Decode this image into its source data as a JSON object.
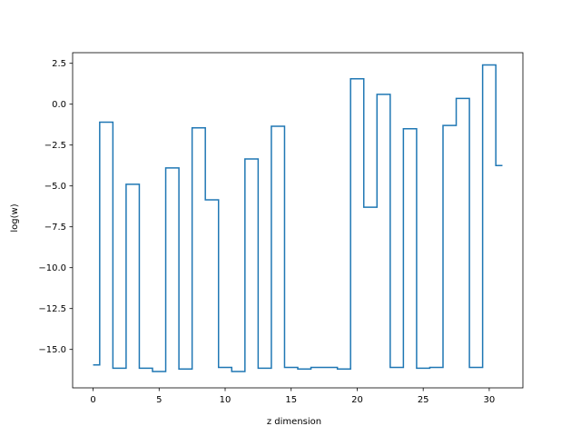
{
  "chart_data": {
    "type": "line",
    "drawstyle": "steps-mid",
    "title": "",
    "xlabel": "z dimension",
    "ylabel": "log(w)",
    "xlim": [
      -1.55,
      32.55
    ],
    "ylim": [
      -17.35,
      3.15
    ],
    "xticks": [
      0,
      5,
      10,
      15,
      20,
      25,
      30
    ],
    "yticks": [
      2.5,
      0.0,
      -2.5,
      -5.0,
      -7.5,
      -10.0,
      -12.5,
      -15.0
    ],
    "ytick_labels": [
      "2.5",
      "0.0",
      "−2.5",
      "−5.0",
      "−7.5",
      "−10.0",
      "−12.5",
      "−15.0"
    ],
    "grid": false,
    "legend": "none",
    "series": [
      {
        "color": "#1f77b4",
        "x": [
          0,
          1,
          2,
          3,
          4,
          5,
          6,
          7,
          8,
          9,
          10,
          11,
          12,
          13,
          14,
          15,
          16,
          17,
          18,
          19,
          20,
          21,
          22,
          23,
          24,
          25,
          26,
          27,
          28,
          29,
          30,
          31
        ],
        "y": [
          -15.95,
          -1.1,
          -16.15,
          -4.9,
          -16.15,
          -16.35,
          -3.9,
          -16.2,
          -1.45,
          -5.85,
          -16.1,
          -16.35,
          -3.35,
          -16.15,
          -1.35,
          -16.1,
          -16.2,
          -16.1,
          -16.1,
          -16.2,
          1.55,
          -6.3,
          0.6,
          -16.1,
          -1.5,
          -16.15,
          -16.1,
          -1.3,
          0.35,
          -16.1,
          2.4,
          -3.75
        ]
      }
    ]
  }
}
